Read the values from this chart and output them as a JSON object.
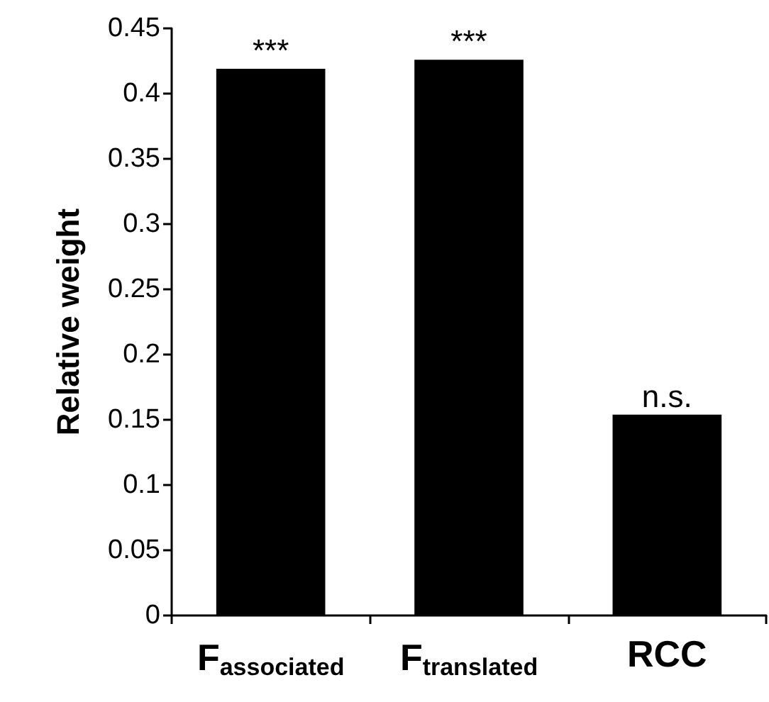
{
  "chart_data": {
    "type": "bar",
    "ylabel": "Relative weight",
    "categories": [
      "F$_{associated}$",
      "F$_{translated}$",
      "RCC"
    ],
    "values": [
      0.419,
      0.426,
      0.154
    ],
    "color": "#000000",
    "ylim": [
      0,
      0.45
    ],
    "yticks": [
      0,
      0.05,
      0.1,
      0.15,
      0.2,
      0.25,
      0.3,
      0.35,
      0.4,
      0.45
    ],
    "grid": false,
    "annotations": [
      {
        "text": "***",
        "x": "F$_{associated}$",
        "y": 0.419
      },
      {
        "text": "***",
        "x": "F$_{translated}$",
        "y": 0.426
      },
      {
        "text": "n.s.",
        "x": "RCC",
        "y": 0.154
      }
    ]
  }
}
